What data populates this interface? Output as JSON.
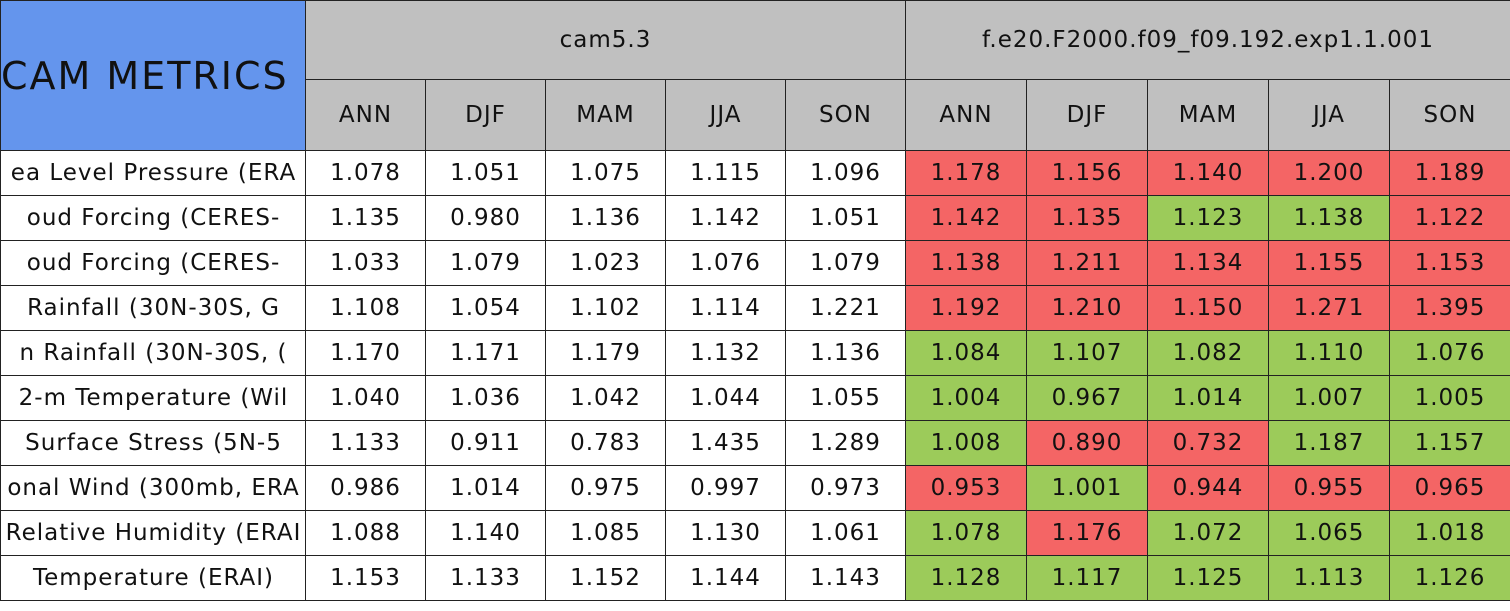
{
  "title": "CAM METRICS",
  "groups": [
    {
      "name": "cam5.3",
      "columns": [
        "ANN",
        "DJF",
        "MAM",
        "JJA",
        "SON"
      ]
    },
    {
      "name": "f.e20.F2000.f09_f09.192.exp1.1.001",
      "columns": [
        "ANN",
        "DJF",
        "MAM",
        "JJA",
        "SON"
      ]
    }
  ],
  "rows": [
    {
      "label": "ea Level Pressure (ERA",
      "cells": [
        "1.078",
        "1.051",
        "1.075",
        "1.115",
        "1.096",
        "1.178",
        "1.156",
        "1.140",
        "1.200",
        "1.189"
      ],
      "colors": [
        "#ffffff",
        "#ffffff",
        "#ffffff",
        "#ffffff",
        "#ffffff",
        "#f46565",
        "#f46565",
        "#f46565",
        "#f46565",
        "#f46565"
      ]
    },
    {
      "label": "oud Forcing (CERES-",
      "cells": [
        "1.135",
        "0.980",
        "1.136",
        "1.142",
        "1.051",
        "1.142",
        "1.135",
        "1.123",
        "1.138",
        "1.122"
      ],
      "colors": [
        "#ffffff",
        "#ffffff",
        "#ffffff",
        "#ffffff",
        "#ffffff",
        "#f46565",
        "#f46565",
        "#9ccb5a",
        "#9ccb5a",
        "#f46565"
      ]
    },
    {
      "label": "oud Forcing (CERES-",
      "cells": [
        "1.033",
        "1.079",
        "1.023",
        "1.076",
        "1.079",
        "1.138",
        "1.211",
        "1.134",
        "1.155",
        "1.153"
      ],
      "colors": [
        "#ffffff",
        "#ffffff",
        "#ffffff",
        "#ffffff",
        "#ffffff",
        "#f46565",
        "#f46565",
        "#f46565",
        "#f46565",
        "#f46565"
      ]
    },
    {
      "label": "Rainfall (30N-30S, G",
      "cells": [
        "1.108",
        "1.054",
        "1.102",
        "1.114",
        "1.221",
        "1.192",
        "1.210",
        "1.150",
        "1.271",
        "1.395"
      ],
      "colors": [
        "#ffffff",
        "#ffffff",
        "#ffffff",
        "#ffffff",
        "#ffffff",
        "#f46565",
        "#f46565",
        "#f46565",
        "#f46565",
        "#f46565"
      ]
    },
    {
      "label": "n Rainfall (30N-30S, (",
      "cells": [
        "1.170",
        "1.171",
        "1.179",
        "1.132",
        "1.136",
        "1.084",
        "1.107",
        "1.082",
        "1.110",
        "1.076"
      ],
      "colors": [
        "#ffffff",
        "#ffffff",
        "#ffffff",
        "#ffffff",
        "#ffffff",
        "#9ccb5a",
        "#9ccb5a",
        "#9ccb5a",
        "#9ccb5a",
        "#9ccb5a"
      ]
    },
    {
      "label": "2-m Temperature (Wil",
      "cells": [
        "1.040",
        "1.036",
        "1.042",
        "1.044",
        "1.055",
        "1.004",
        "0.967",
        "1.014",
        "1.007",
        "1.005"
      ],
      "colors": [
        "#ffffff",
        "#ffffff",
        "#ffffff",
        "#ffffff",
        "#ffffff",
        "#9ccb5a",
        "#9ccb5a",
        "#9ccb5a",
        "#9ccb5a",
        "#9ccb5a"
      ]
    },
    {
      "label": "Surface Stress (5N-5",
      "cells": [
        "1.133",
        "0.911",
        "0.783",
        "1.435",
        "1.289",
        "1.008",
        "0.890",
        "0.732",
        "1.187",
        "1.157"
      ],
      "colors": [
        "#ffffff",
        "#ffffff",
        "#ffffff",
        "#ffffff",
        "#ffffff",
        "#9ccb5a",
        "#f46565",
        "#f46565",
        "#9ccb5a",
        "#9ccb5a"
      ]
    },
    {
      "label": "onal Wind (300mb, ERA",
      "cells": [
        "0.986",
        "1.014",
        "0.975",
        "0.997",
        "0.973",
        "0.953",
        "1.001",
        "0.944",
        "0.955",
        "0.965"
      ],
      "colors": [
        "#ffffff",
        "#ffffff",
        "#ffffff",
        "#ffffff",
        "#ffffff",
        "#f46565",
        "#9ccb5a",
        "#f46565",
        "#f46565",
        "#f46565"
      ]
    },
    {
      "label": "Relative Humidity (ERAI",
      "cells": [
        "1.088",
        "1.140",
        "1.085",
        "1.130",
        "1.061",
        "1.078",
        "1.176",
        "1.072",
        "1.065",
        "1.018"
      ],
      "colors": [
        "#ffffff",
        "#ffffff",
        "#ffffff",
        "#ffffff",
        "#ffffff",
        "#9ccb5a",
        "#f46565",
        "#9ccb5a",
        "#9ccb5a",
        "#9ccb5a"
      ]
    },
    {
      "label": "Temperature (ERAI)",
      "cells": [
        "1.153",
        "1.133",
        "1.152",
        "1.144",
        "1.143",
        "1.128",
        "1.117",
        "1.125",
        "1.113",
        "1.126"
      ],
      "colors": [
        "#ffffff",
        "#ffffff",
        "#ffffff",
        "#ffffff",
        "#ffffff",
        "#9ccb5a",
        "#9ccb5a",
        "#9ccb5a",
        "#9ccb5a",
        "#9ccb5a"
      ]
    }
  ]
}
